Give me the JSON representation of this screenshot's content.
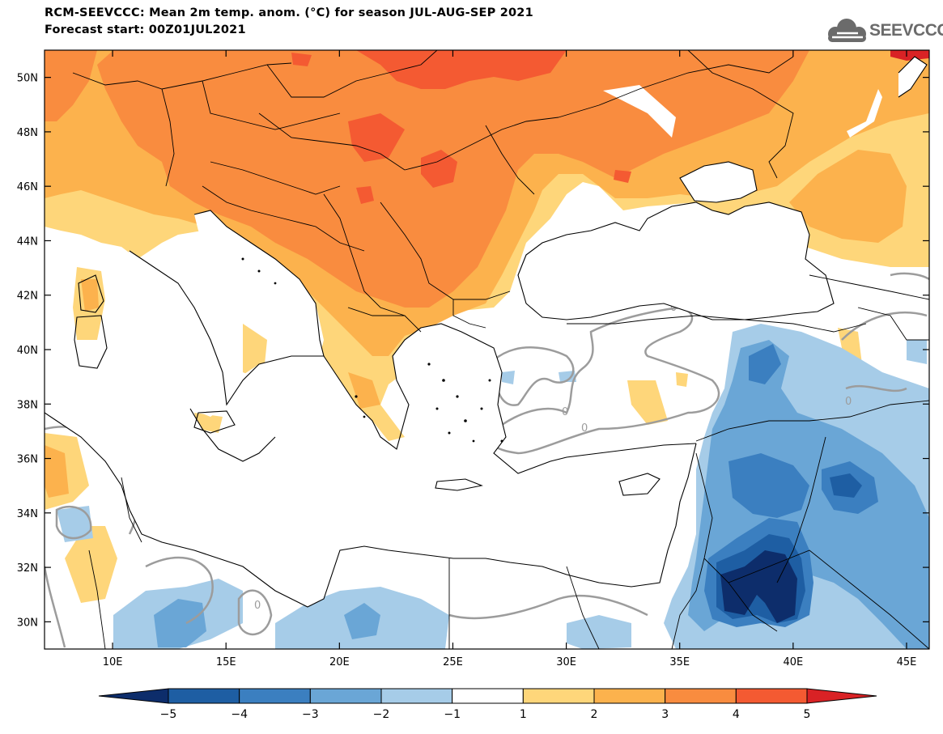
{
  "header": {
    "title_line1": "RCM-SEEVCCC: Mean 2m temp. anom. (°C) for season JUL-AUG-SEP 2021",
    "title_line2": "Forecast start: 00Z01JUL2021"
  },
  "logo": {
    "text": "SEEVCCC",
    "icon": "cloud-icon",
    "color": "#6b6b6b"
  },
  "map": {
    "lon_range": [
      7,
      46
    ],
    "lat_range": [
      29,
      51
    ],
    "lon_ticks": [
      10,
      15,
      20,
      25,
      30,
      35,
      40,
      45
    ],
    "lon_tick_labels": [
      "10E",
      "15E",
      "20E",
      "25E",
      "30E",
      "35E",
      "40E",
      "45E"
    ],
    "lat_ticks": [
      30,
      32,
      34,
      36,
      38,
      40,
      42,
      44,
      46,
      48,
      50
    ],
    "lat_tick_labels": [
      "30N",
      "32N",
      "34N",
      "36N",
      "38N",
      "40N",
      "42N",
      "44N",
      "46N",
      "48N",
      "50N"
    ],
    "contour_label": "0"
  },
  "colorbar": {
    "bins": [
      {
        "from": null,
        "to": -5,
        "color": "#0d2d6b"
      },
      {
        "from": -5,
        "to": -4,
        "color": "#1e5ea3"
      },
      {
        "from": -4,
        "to": -3,
        "color": "#3b7fc0"
      },
      {
        "from": -3,
        "to": -2,
        "color": "#6aa6d6"
      },
      {
        "from": -2,
        "to": -1,
        "color": "#a6cce8"
      },
      {
        "from": -1,
        "to": 1,
        "color": "#ffffff"
      },
      {
        "from": 1,
        "to": 2,
        "color": "#fed67a"
      },
      {
        "from": 2,
        "to": 3,
        "color": "#fcb24d"
      },
      {
        "from": 3,
        "to": 4,
        "color": "#f98c3f"
      },
      {
        "from": 4,
        "to": 5,
        "color": "#f45a32"
      },
      {
        "from": 5,
        "to": null,
        "color": "#d92225"
      }
    ],
    "labels": [
      "−5",
      "−4",
      "−3",
      "−2",
      "−1",
      "1",
      "2",
      "3",
      "4",
      "5"
    ]
  },
  "colors": {
    "anom_1_2": "#fed67a",
    "anom_2_3": "#fcb24d",
    "anom_3_4": "#f98c3f",
    "anom_4_5": "#f45a32",
    "anom_gt5": "#d92225",
    "anom_m1_m2": "#a6cce8",
    "anom_m2_m3": "#6aa6d6",
    "anom_m3_m4": "#3b7fc0",
    "anom_m4_m5": "#1e5ea3",
    "anom_lt_m5": "#0d2d6b",
    "zero_contour": "#9c9c9c"
  }
}
